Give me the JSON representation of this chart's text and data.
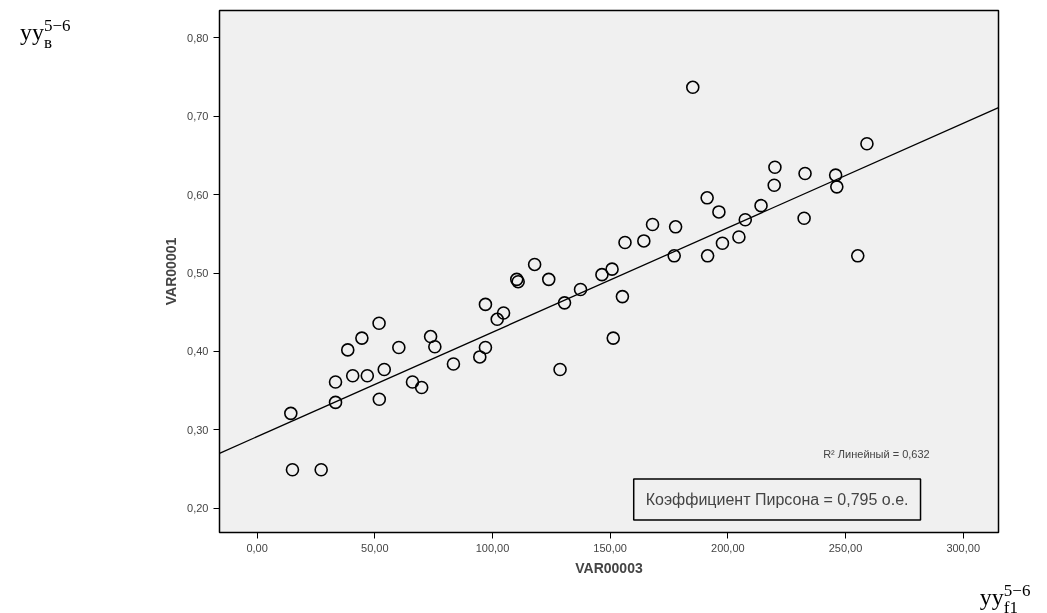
{
  "chart_data": {
    "type": "scatter",
    "xlabel": "VAR00003",
    "ylabel": "VAR00001",
    "xlim": [
      -16,
      315
    ],
    "ylim": [
      0.169,
      0.835
    ],
    "xticks": [
      {
        "value": 0,
        "label": "0,00"
      },
      {
        "value": 50,
        "label": "50,00"
      },
      {
        "value": 100,
        "label": "100,00"
      },
      {
        "value": 150,
        "label": "150,00"
      },
      {
        "value": 200,
        "label": "200,00"
      },
      {
        "value": 250,
        "label": "250,00"
      },
      {
        "value": 300,
        "label": "300,00"
      }
    ],
    "yticks": [
      {
        "value": 0.2,
        "label": "0,20"
      },
      {
        "value": 0.3,
        "label": "0,30"
      },
      {
        "value": 0.4,
        "label": "0,40"
      },
      {
        "value": 0.5,
        "label": "0,50"
      },
      {
        "value": 0.6,
        "label": "0,60"
      },
      {
        "value": 0.7,
        "label": "0,70"
      },
      {
        "value": 0.8,
        "label": "0,80"
      }
    ],
    "grid": false,
    "series": [
      {
        "type": "scatter",
        "color": "#000000",
        "marker": "circle",
        "x": [
          14.3,
          15.0,
          27.2,
          33.3,
          33.3,
          38.5,
          40.6,
          44.5,
          46.8,
          51.8,
          51.9,
          54.0,
          60.2,
          66.0,
          69.9,
          73.7,
          75.5,
          83.4,
          94.6,
          97.0,
          97.0,
          102.0,
          104.7,
          110.3,
          110.9,
          117.9,
          123.9,
          128.7,
          130.6,
          137.4,
          146.5,
          150.8,
          155.2,
          151.3,
          156.3,
          164.3,
          168.0,
          177.8,
          177.2,
          191.2,
          191.4,
          196.2,
          197.7,
          204.7,
          207.4,
          214.1,
          219.7,
          220.0,
          232.4,
          232.8,
          245.8,
          246.3,
          255.2,
          259.1,
          185.1
        ],
        "values": [
          0.321,
          0.249,
          0.249,
          0.361,
          0.335,
          0.402,
          0.369,
          0.417,
          0.369,
          0.436,
          0.339,
          0.377,
          0.405,
          0.361,
          0.354,
          0.419,
          0.406,
          0.384,
          0.393,
          0.46,
          0.405,
          0.441,
          0.449,
          0.492,
          0.489,
          0.511,
          0.492,
          0.377,
          0.462,
          0.479,
          0.498,
          0.505,
          0.47,
          0.417,
          0.539,
          0.541,
          0.562,
          0.559,
          0.522,
          0.596,
          0.522,
          0.578,
          0.538,
          0.546,
          0.568,
          0.586,
          0.612,
          0.635,
          0.57,
          0.627,
          0.625,
          0.61,
          0.522,
          0.665,
          0.737
        ]
      },
      {
        "type": "line",
        "color": "#000000",
        "marker": "none",
        "x": [
          -16,
          315
        ],
        "values": [
          0.27,
          0.711
        ]
      }
    ],
    "annotations": [
      "R² Линейный = 0,632",
      "Коэффициент Пирсона = 0,795 о.е.",
      "уу$_{в}$$^{5−6}$",
      "уу$_{f1}$$^{5−6}$"
    ]
  }
}
